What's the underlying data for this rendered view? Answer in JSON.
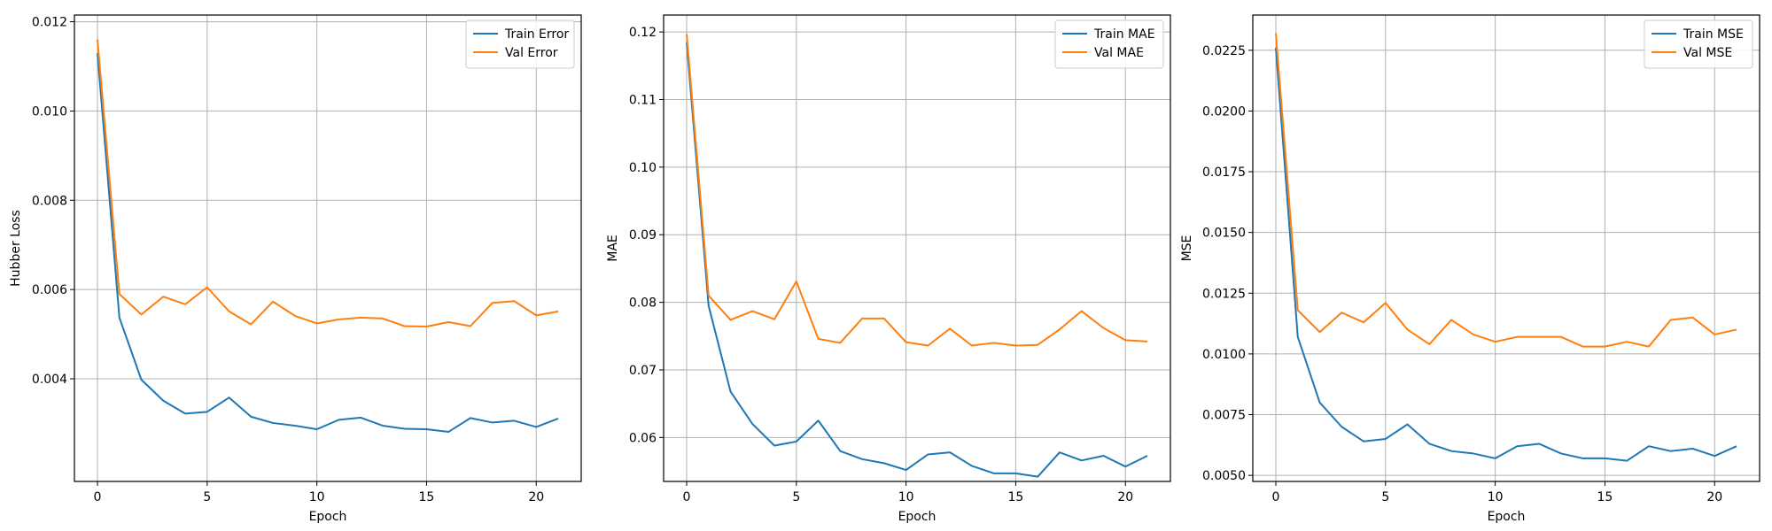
{
  "chart_data": [
    {
      "type": "line",
      "xlabel": "Epoch",
      "ylabel": "Hubber Loss",
      "xlim": [
        -1.05,
        22.05
      ],
      "ylim": [
        0.0017,
        0.01215
      ],
      "xticks": [
        0,
        5,
        10,
        15,
        20
      ],
      "xtick_labels": [
        "0",
        "5",
        "10",
        "15",
        "20"
      ],
      "yticks": [
        0.004,
        0.006,
        0.008,
        0.01,
        0.012
      ],
      "ytick_labels": [
        "0.004",
        "0.006",
        "0.008",
        "0.010",
        "0.012"
      ],
      "grid": true,
      "legend_position": "top-right",
      "x": [
        0,
        1,
        2,
        3,
        4,
        5,
        6,
        7,
        8,
        9,
        10,
        11,
        12,
        13,
        14,
        15,
        16,
        17,
        18,
        19,
        20,
        21
      ],
      "series": [
        {
          "name": "Train Error",
          "color": "#1f77b4",
          "values": [
            0.0113,
            0.00537,
            0.00398,
            0.00351,
            0.00322,
            0.00326,
            0.00358,
            0.00315,
            0.00301,
            0.00295,
            0.00287,
            0.00308,
            0.00313,
            0.00295,
            0.00288,
            0.00287,
            0.00281,
            0.00312,
            0.00302,
            0.00306,
            0.00292,
            0.00311
          ]
        },
        {
          "name": "Val Error",
          "color": "#ff7f0e",
          "values": [
            0.0116,
            0.0059,
            0.00544,
            0.00584,
            0.00567,
            0.00605,
            0.00551,
            0.00522,
            0.00573,
            0.00541,
            0.00524,
            0.00533,
            0.00537,
            0.00535,
            0.00518,
            0.00517,
            0.00527,
            0.00518,
            0.0057,
            0.00574,
            0.00542,
            0.00551
          ]
        }
      ]
    },
    {
      "type": "line",
      "xlabel": "Epoch",
      "ylabel": "MAE",
      "xlim": [
        -1.05,
        22.05
      ],
      "ylim": [
        0.0535,
        0.1225
      ],
      "xticks": [
        0,
        5,
        10,
        15,
        20
      ],
      "xtick_labels": [
        "0",
        "5",
        "10",
        "15",
        "20"
      ],
      "yticks": [
        0.06,
        0.07,
        0.08,
        0.09,
        0.1,
        0.11,
        0.12
      ],
      "ytick_labels": [
        "0.06",
        "0.07",
        "0.08",
        "0.09",
        "0.10",
        "0.11",
        "0.12"
      ],
      "grid": true,
      "legend_position": "top-right",
      "x": [
        0,
        1,
        2,
        3,
        4,
        5,
        6,
        7,
        8,
        9,
        10,
        11,
        12,
        13,
        14,
        15,
        16,
        17,
        18,
        19,
        20,
        21
      ],
      "series": [
        {
          "name": "Train MAE",
          "color": "#1f77b4",
          "values": [
            0.1185,
            0.0795,
            0.0668,
            0.062,
            0.0588,
            0.0594,
            0.0625,
            0.058,
            0.0568,
            0.0562,
            0.0552,
            0.0575,
            0.0578,
            0.0558,
            0.0547,
            0.0547,
            0.0542,
            0.0578,
            0.0566,
            0.0573,
            0.0557,
            0.0573
          ]
        },
        {
          "name": "Val MAE",
          "color": "#ff7f0e",
          "values": [
            0.1197,
            0.081,
            0.0774,
            0.0787,
            0.0775,
            0.0831,
            0.0746,
            0.074,
            0.0776,
            0.0776,
            0.0741,
            0.0736,
            0.0761,
            0.0736,
            0.074,
            0.0736,
            0.0737,
            0.076,
            0.0787,
            0.0762,
            0.0744,
            0.0742
          ]
        }
      ]
    },
    {
      "type": "line",
      "xlabel": "Epoch",
      "ylabel": "MSE",
      "xlim": [
        -1.05,
        22.05
      ],
      "ylim": [
        0.00475,
        0.02395
      ],
      "xticks": [
        0,
        5,
        10,
        15,
        20
      ],
      "xtick_labels": [
        "0",
        "5",
        "10",
        "15",
        "20"
      ],
      "yticks": [
        0.005,
        0.0075,
        0.01,
        0.0125,
        0.015,
        0.0175,
        0.02,
        0.0225
      ],
      "ytick_labels": [
        "0.0050",
        "0.0075",
        "0.0100",
        "0.0125",
        "0.0150",
        "0.0175",
        "0.0200",
        "0.0225"
      ],
      "grid": true,
      "legend_position": "top-right",
      "x": [
        0,
        1,
        2,
        3,
        4,
        5,
        6,
        7,
        8,
        9,
        10,
        11,
        12,
        13,
        14,
        15,
        16,
        17,
        18,
        19,
        20,
        21
      ],
      "series": [
        {
          "name": "Train MSE",
          "color": "#1f77b4",
          "values": [
            0.0226,
            0.0107,
            0.008,
            0.007,
            0.0064,
            0.0065,
            0.0071,
            0.0063,
            0.006,
            0.0059,
            0.0057,
            0.0062,
            0.0063,
            0.0059,
            0.0057,
            0.0057,
            0.0056,
            0.0062,
            0.006,
            0.0061,
            0.0058,
            0.0062
          ]
        },
        {
          "name": "Val MSE",
          "color": "#ff7f0e",
          "values": [
            0.0232,
            0.0118,
            0.0109,
            0.0117,
            0.0113,
            0.0121,
            0.011,
            0.0104,
            0.0114,
            0.0108,
            0.0105,
            0.0107,
            0.0107,
            0.0107,
            0.0103,
            0.0103,
            0.0105,
            0.0103,
            0.0114,
            0.0115,
            0.0108,
            0.011
          ]
        }
      ]
    }
  ]
}
